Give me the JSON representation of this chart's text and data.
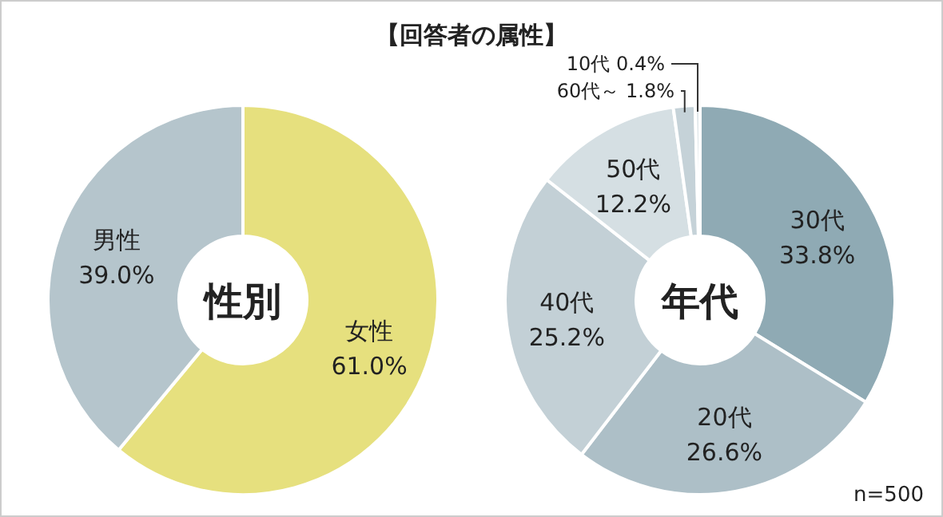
{
  "chart_data": [
    {
      "type": "donut",
      "title": "性別",
      "annotations": [
        "【回答者の属性】"
      ],
      "categories": [
        "女性",
        "男性"
      ],
      "values": [
        61.0,
        39.0
      ],
      "value_labels": [
        "61.0%",
        "39.0%"
      ],
      "colors": [
        "#e6e07e",
        "#b5c5cc"
      ]
    },
    {
      "type": "donut",
      "title": "年代",
      "annotations": [
        "n=500"
      ],
      "categories": [
        "30代",
        "20代",
        "40代",
        "50代",
        "60代～",
        "10代"
      ],
      "values": [
        33.8,
        26.6,
        25.2,
        12.2,
        1.8,
        0.4
      ],
      "value_labels": [
        "33.8%",
        "26.6%",
        "25.2%",
        "12.2%",
        "1.8%",
        "0.4%"
      ],
      "colors": [
        "#8faab4",
        "#adbfc7",
        "#c3d0d6",
        "#d5dfe3",
        "#c5d2d8",
        "#dfe6e9"
      ]
    }
  ]
}
